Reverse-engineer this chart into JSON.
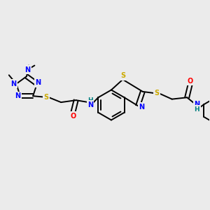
{
  "bg_color": "#ebebeb",
  "line_color": "#000000",
  "bond_width": 1.4,
  "atom_colors": {
    "N": "#0000ff",
    "S": "#ccaa00",
    "O": "#ff0000",
    "NH": "#008080",
    "C": "#000000"
  },
  "figsize": [
    3.0,
    3.0
  ],
  "dpi": 100
}
